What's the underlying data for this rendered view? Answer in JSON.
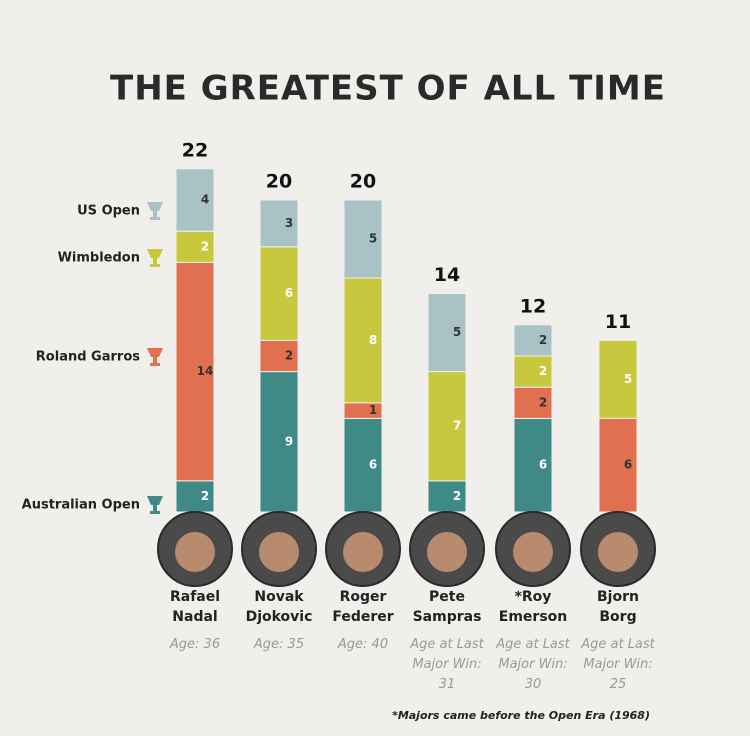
{
  "chart_data": {
    "type": "stacked-bar",
    "title": "THE GREATEST OF ALL TIME",
    "categories": [
      "Rafael Nadal",
      "Novak Djokovic",
      "Roger Federer",
      "Pete Sampras",
      "*Roy Emerson",
      "Bjorn Borg"
    ],
    "series": [
      {
        "name": "Australian Open",
        "color": "#3f8a86",
        "values": [
          2,
          9,
          6,
          2,
          6,
          0
        ]
      },
      {
        "name": "Roland Garros",
        "color": "#e0704f",
        "values": [
          14,
          2,
          1,
          0,
          2,
          6
        ]
      },
      {
        "name": "Wimbledon",
        "color": "#c8c83e",
        "values": [
          2,
          6,
          8,
          7,
          2,
          5
        ]
      },
      {
        "name": "US Open",
        "color": "#a8c2c6",
        "values": [
          4,
          3,
          5,
          5,
          2,
          0
        ]
      }
    ],
    "totals": [
      22,
      20,
      20,
      14,
      12,
      11
    ],
    "ages": [
      "Age: 36",
      "Age: 35",
      "Age: 40",
      "Age at Last Major Win: 31",
      "Age at Last Major Win: 30",
      "Age at Last Major Win: 25"
    ],
    "footnote": "*Majors came before the Open Era (1968)"
  }
}
